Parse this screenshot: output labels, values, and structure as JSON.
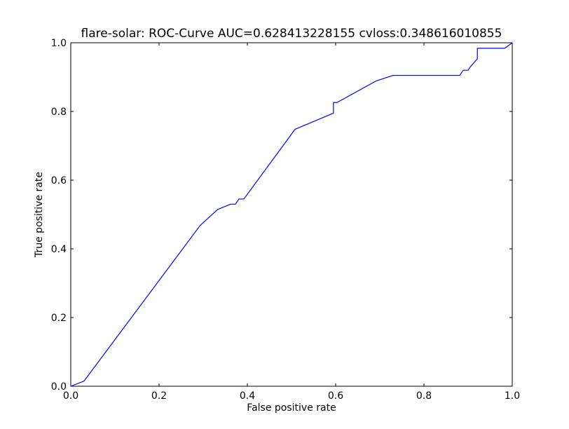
{
  "chart_data": {
    "type": "line",
    "title": "flare-solar: ROC-Curve AUC=0.628413228155 cvloss:0.348616010855",
    "xlabel": "False positive rate",
    "ylabel": "True positive rate",
    "xlim": [
      0.0,
      1.0
    ],
    "ylim": [
      0.0,
      1.0
    ],
    "xticks": [
      0.0,
      0.2,
      0.4,
      0.6,
      0.8,
      1.0
    ],
    "yticks": [
      0.0,
      0.2,
      0.4,
      0.6,
      0.8,
      1.0
    ],
    "xtick_labels": [
      "0.0",
      "0.2",
      "0.4",
      "0.6",
      "0.8",
      "1.0"
    ],
    "ytick_labels": [
      "0.0",
      "0.2",
      "0.4",
      "0.6",
      "0.8",
      "1.0"
    ],
    "grid": false,
    "series": [
      {
        "color": "#0000ff",
        "x": [
          0.0,
          0.03,
          0.293,
          0.333,
          0.362,
          0.373,
          0.381,
          0.392,
          0.508,
          0.595,
          0.595,
          0.603,
          0.692,
          0.73,
          0.881,
          0.889,
          0.9,
          0.905,
          0.921,
          0.921,
          0.983,
          1.0
        ],
        "y": [
          0.0,
          0.015,
          0.468,
          0.515,
          0.53,
          0.53,
          0.545,
          0.545,
          0.748,
          0.795,
          0.826,
          0.826,
          0.889,
          0.905,
          0.905,
          0.92,
          0.92,
          0.93,
          0.953,
          0.984,
          0.984,
          1.0
        ]
      }
    ]
  }
}
